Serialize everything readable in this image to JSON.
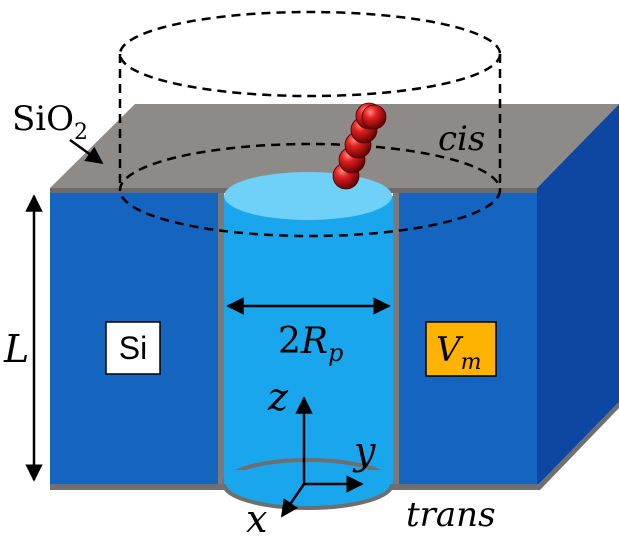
{
  "labels": {
    "oxide": "SiO",
    "oxide_sub": "2",
    "cis": "cis",
    "trans": "trans",
    "length": "L",
    "silicon": "Si",
    "voltage": "V",
    "voltage_sub": "m",
    "pore_width_prefix": "2",
    "pore_width_var": "R",
    "pore_width_sub": "p",
    "axis_z": "z",
    "axis_y": "y",
    "axis_x": "x"
  },
  "colors": {
    "silicon_front": "#1565c0",
    "silicon_side": "#0d47a1",
    "oxide_top": "#8e8a88",
    "pore_water": "#1aa6ec",
    "pore_top": "#6fd0f8",
    "voltage_box": "#ffb300",
    "bead": "#c01010"
  }
}
